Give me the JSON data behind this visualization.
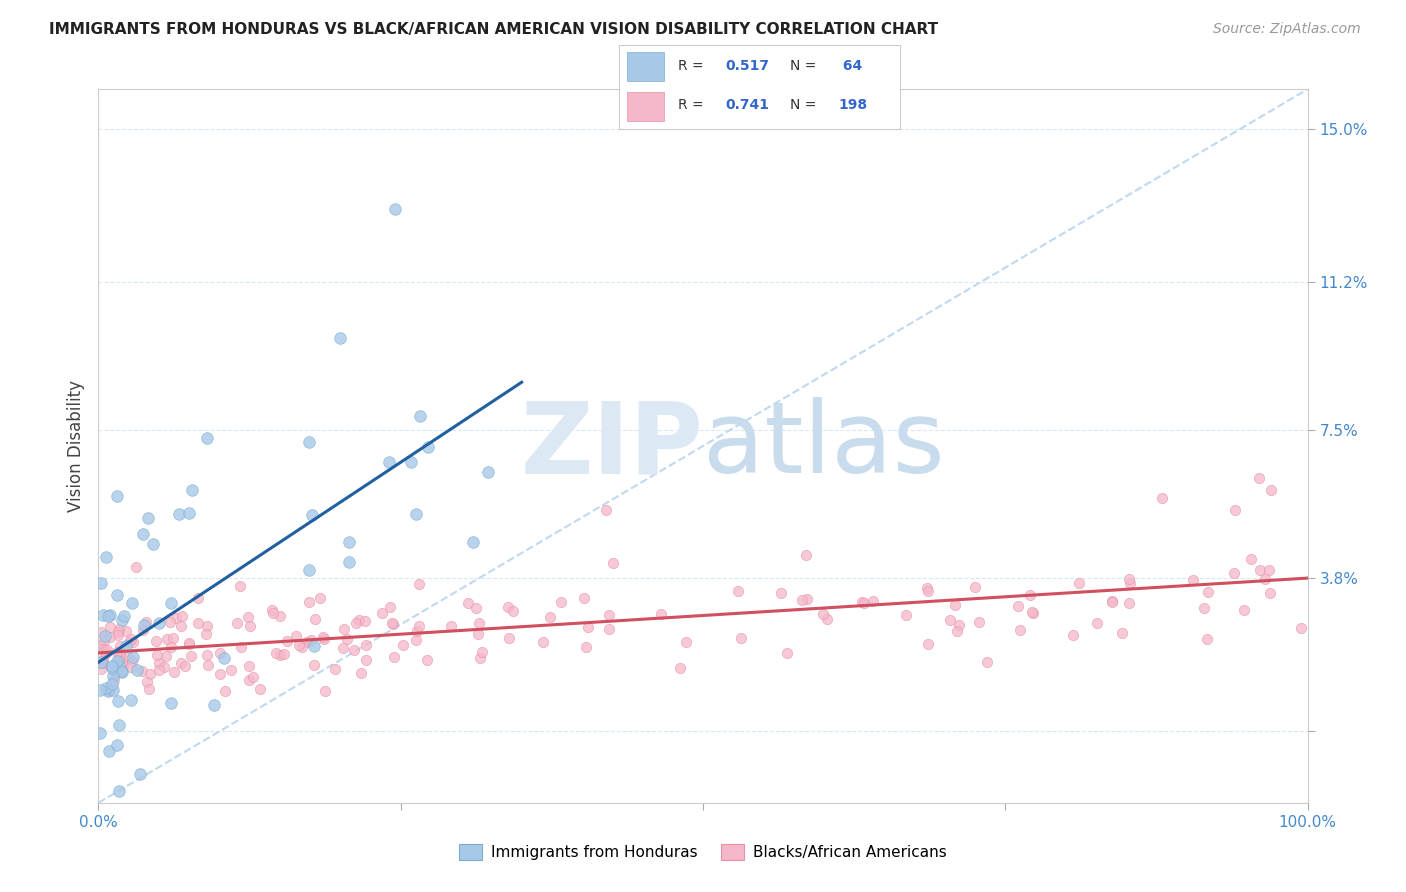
{
  "title": "IMMIGRANTS FROM HONDURAS VS BLACK/AFRICAN AMERICAN VISION DISABILITY CORRELATION CHART",
  "source": "Source: ZipAtlas.com",
  "ylabel": "Vision Disability",
  "yticks": [
    0.0,
    0.038,
    0.075,
    0.112,
    0.15
  ],
  "ytick_labels": [
    "",
    "3.8%",
    "7.5%",
    "11.2%",
    "15.0%"
  ],
  "xlim": [
    0.0,
    1.0
  ],
  "ylim": [
    -0.018,
    0.16
  ],
  "color_blue": "#a8c8e8",
  "color_blue_edge": "#7aaed0",
  "color_pink": "#f4b8c8",
  "color_pink_edge": "#e890a8",
  "color_trend_blue": "#2060a0",
  "color_trend_pink": "#d05060",
  "color_diagonal": "#c0d8f0",
  "watermark_zip_color": "#dce8f4",
  "watermark_atlas_color": "#c8dced",
  "background_color": "#ffffff",
  "grid_color": "#d8e8f4",
  "tick_color": "#4488cc",
  "legend_text_color": "#333333",
  "legend_val_color": "#3366cc"
}
